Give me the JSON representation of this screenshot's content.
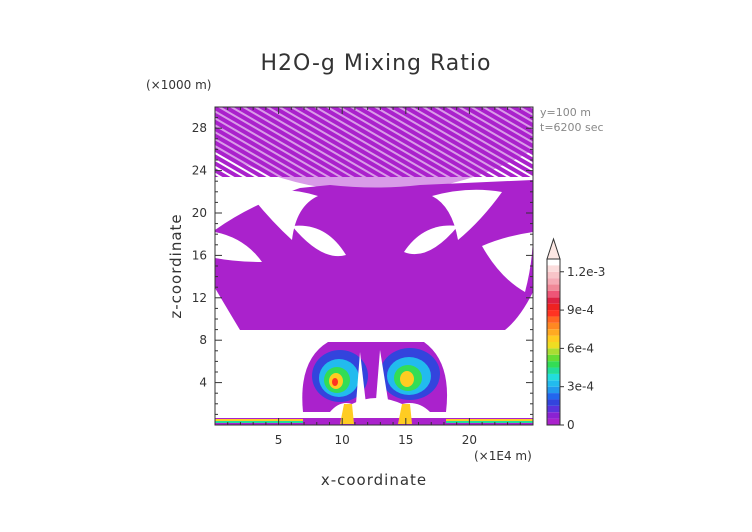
{
  "chart_data": {
    "type": "heatmap",
    "title": "H2O-g Mixing Ratio",
    "xlabel": "x-coordinate",
    "ylabel": "z-coordinate",
    "x_unit": "(×1E4 m)",
    "y_unit": "(×1000 m)",
    "xlim": [
      0,
      25
    ],
    "ylim": [
      0,
      30
    ],
    "x_ticks": [
      "5",
      "10",
      "15",
      "20"
    ],
    "x_tick_values": [
      5,
      10,
      15,
      20
    ],
    "y_ticks": [
      "4",
      "8",
      "12",
      "16",
      "20",
      "24",
      "28"
    ],
    "y_tick_values": [
      4,
      8,
      12,
      16,
      20,
      24,
      28
    ],
    "annotations": [
      "y=100 m",
      "t=6200 sec"
    ],
    "colorbar": {
      "labels": [
        "0",
        "3e-4",
        "6e-4",
        "9e-4",
        "1.2e-3"
      ],
      "label_values": [
        0,
        0.0003,
        0.0006,
        0.0009,
        0.0012
      ],
      "vmin": 0,
      "vmax": 0.0013,
      "extend": "max",
      "levels": [
        {
          "value": 0.0,
          "color": "#aa22cc"
        },
        {
          "value": 5e-05,
          "color": "#8a22d2"
        },
        {
          "value": 0.0001,
          "color": "#5a33dd"
        },
        {
          "value": 0.00015,
          "color": "#3344dd"
        },
        {
          "value": 0.0002,
          "color": "#2266ee"
        },
        {
          "value": 0.00025,
          "color": "#2299ee"
        },
        {
          "value": 0.0003,
          "color": "#22bbee"
        },
        {
          "value": 0.00035,
          "color": "#22dddd"
        },
        {
          "value": 0.0004,
          "color": "#22dd99"
        },
        {
          "value": 0.00045,
          "color": "#33dd55"
        },
        {
          "value": 0.0005,
          "color": "#66dd33"
        },
        {
          "value": 0.00055,
          "color": "#aadd33"
        },
        {
          "value": 0.0006,
          "color": "#eedd22"
        },
        {
          "value": 0.00065,
          "color": "#ffcc22"
        },
        {
          "value": 0.0007,
          "color": "#ffaa22"
        },
        {
          "value": 0.00075,
          "color": "#ff8822"
        },
        {
          "value": 0.0008,
          "color": "#ff6622"
        },
        {
          "value": 0.00085,
          "color": "#ff3322"
        },
        {
          "value": 0.0009,
          "color": "#ee2222"
        },
        {
          "value": 0.00095,
          "color": "#dd2244"
        },
        {
          "value": 0.001,
          "color": "#ee5577"
        },
        {
          "value": 0.00105,
          "color": "#f08898"
        },
        {
          "value": 0.0011,
          "color": "#f5aab5"
        },
        {
          "value": 0.00115,
          "color": "#f8c4c8"
        },
        {
          "value": 0.0012,
          "color": "#fbdcdc"
        }
      ],
      "extend_color": "#fde8e4"
    }
  }
}
